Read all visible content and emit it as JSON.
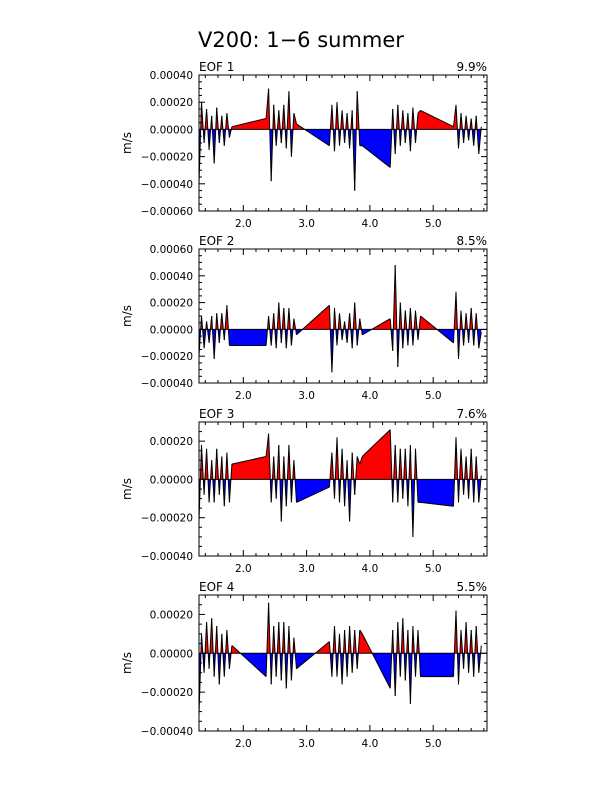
{
  "title": "V200: 1−6 summer",
  "colors": {
    "positive": "#ff0000",
    "negative": "#0000ff",
    "line": "#000000"
  },
  "chart_data": [
    {
      "type": "area",
      "label": "EOF 1",
      "variance": "9.9%",
      "ylabel": "m/s",
      "ylim": [
        -0.0006,
        0.0004
      ],
      "yticks": [
        -0.0006,
        -0.0004,
        -0.0002,
        0.0,
        0.0002,
        0.0004
      ],
      "yticklabels": [
        "−0.00060",
        "−0.00040",
        "−0.00020",
        "0.00000",
        "0.00020",
        "0.00040"
      ],
      "xlim": [
        1.3,
        5.85
      ],
      "xticks": [
        2.0,
        3.0,
        4.0,
        5.0
      ],
      "xticklabels": [
        "2.0",
        "3.0",
        "4.0",
        "5.0"
      ],
      "x": [
        1.3,
        1.34,
        1.38,
        1.42,
        1.46,
        1.5,
        1.54,
        1.58,
        1.62,
        1.66,
        1.7,
        1.74,
        1.78,
        1.82,
        2.36,
        2.4,
        2.44,
        2.48,
        2.52,
        2.56,
        2.6,
        2.64,
        2.68,
        2.72,
        2.76,
        2.8,
        2.84,
        3.36,
        3.4,
        3.44,
        3.48,
        3.52,
        3.56,
        3.6,
        3.64,
        3.68,
        3.72,
        3.76,
        3.8,
        3.84,
        3.88,
        4.32,
        4.36,
        4.4,
        4.44,
        4.48,
        4.52,
        4.56,
        4.6,
        4.64,
        4.68,
        4.72,
        4.76,
        4.8,
        5.32,
        5.36,
        5.4,
        5.44,
        5.48,
        5.52,
        5.56,
        5.6,
        5.64,
        5.68,
        5.72,
        5.76
      ],
      "values": [
        -0.0004,
        0.0002,
        -0.0001,
        0.00015,
        -0.00015,
        0.0001,
        -0.00025,
        0.00016,
        -0.0001,
        0.0001,
        -0.00012,
        0.00012,
        -6e-05,
        2e-05,
        8e-05,
        0.0003,
        -0.00038,
        0.00018,
        -0.00012,
        0.00014,
        -0.0001,
        0.00018,
        -0.00014,
        0.00028,
        -0.0002,
        0.00012,
        4e-05,
        -0.00012,
        0.00018,
        -0.00016,
        0.0002,
        -0.00012,
        0.00014,
        -0.0001,
        0.00012,
        -0.00014,
        0.00014,
        -0.00045,
        0.00028,
        -0.00012,
        -0.00012,
        -0.00028,
        0.00015,
        -0.00018,
        0.00018,
        -0.00012,
        0.00014,
        -0.0001,
        0.00012,
        -0.00016,
        0.00016,
        -0.0001,
        0.00012,
        0.00014,
        2e-05,
        0.00018,
        -0.00014,
        0.00012,
        -0.0001,
        0.0001,
        -8e-05,
        8e-05,
        -0.00012,
        0.0001,
        -0.00018,
        2e-05
      ]
    },
    {
      "type": "area",
      "label": "EOF 2",
      "variance": "8.5%",
      "ylabel": "m/s",
      "ylim": [
        -0.0004,
        0.0006
      ],
      "yticks": [
        -0.0004,
        -0.0002,
        0.0,
        0.0002,
        0.0004,
        0.0006
      ],
      "yticklabels": [
        "−0.00040",
        "−0.00020",
        "0.00000",
        "0.00020",
        "0.00040",
        "0.00060"
      ],
      "xlim": [
        1.3,
        5.85
      ],
      "xticks": [
        2.0,
        3.0,
        4.0,
        5.0
      ],
      "xticklabels": [
        "2.0",
        "3.0",
        "4.0",
        "5.0"
      ],
      "x": [
        1.3,
        1.34,
        1.38,
        1.42,
        1.46,
        1.5,
        1.54,
        1.58,
        1.62,
        1.66,
        1.7,
        1.74,
        1.78,
        1.82,
        2.36,
        2.4,
        2.44,
        2.48,
        2.52,
        2.56,
        2.6,
        2.64,
        2.68,
        2.72,
        2.76,
        2.8,
        2.84,
        3.36,
        3.4,
        3.44,
        3.48,
        3.52,
        3.56,
        3.6,
        3.64,
        3.68,
        3.72,
        3.76,
        3.8,
        3.84,
        3.88,
        4.32,
        4.36,
        4.4,
        4.44,
        4.48,
        4.52,
        4.56,
        4.6,
        4.64,
        4.68,
        4.72,
        4.76,
        4.8,
        5.32,
        5.36,
        5.4,
        5.44,
        5.48,
        5.52,
        5.56,
        5.6,
        5.64,
        5.68,
        5.72,
        5.76
      ],
      "values": [
        -0.0002,
        0.0001,
        -0.00014,
        6e-05,
        -0.0001,
        0.0001,
        -0.00022,
        0.00012,
        -0.0001,
        0.00012,
        -8e-05,
        0.00018,
        -0.00012,
        -0.00012,
        -0.00012,
        0.0001,
        -0.00012,
        0.00012,
        -0.00014,
        0.0002,
        -0.0001,
        0.00016,
        -0.00014,
        0.00016,
        -0.00012,
        8e-05,
        -4e-05,
        0.00018,
        -0.00032,
        0.00016,
        -0.00012,
        0.00012,
        -8e-05,
        6e-05,
        -0.0001,
        0.00012,
        -0.00014,
        0.0002,
        -0.00012,
        8e-05,
        -4e-05,
        8e-05,
        -0.00016,
        0.00048,
        -0.00028,
        0.0002,
        -0.00014,
        0.00014,
        -0.00012,
        0.00016,
        -0.00012,
        0.00014,
        -8e-05,
        0.0001,
        -0.0001,
        0.00028,
        -0.00022,
        0.00014,
        -0.00012,
        0.00012,
        -0.0001,
        0.00016,
        -0.00012,
        0.00012,
        -0.00014,
        -2e-05
      ]
    },
    {
      "type": "area",
      "label": "EOF 3",
      "variance": "7.6%",
      "ylabel": "m/s",
      "ylim": [
        -0.0004,
        0.0003
      ],
      "yticks": [
        -0.0004,
        -0.0002,
        0.0,
        0.0002
      ],
      "yticklabels": [
        "−0.00040",
        "−0.00020",
        "0.00000",
        "0.00020"
      ],
      "xlim": [
        1.3,
        5.85
      ],
      "xticks": [
        2.0,
        3.0,
        4.0,
        5.0
      ],
      "xticklabels": [
        "2.0",
        "3.0",
        "4.0",
        "5.0"
      ],
      "x": [
        1.3,
        1.34,
        1.38,
        1.42,
        1.46,
        1.5,
        1.54,
        1.58,
        1.62,
        1.66,
        1.7,
        1.74,
        1.78,
        1.82,
        2.36,
        2.4,
        2.44,
        2.48,
        2.52,
        2.56,
        2.6,
        2.64,
        2.68,
        2.72,
        2.76,
        2.8,
        2.84,
        3.36,
        3.4,
        3.44,
        3.48,
        3.52,
        3.56,
        3.6,
        3.64,
        3.68,
        3.72,
        3.76,
        3.8,
        3.84,
        3.88,
        4.32,
        4.36,
        4.4,
        4.44,
        4.48,
        4.52,
        4.56,
        4.6,
        4.64,
        4.68,
        4.72,
        4.76,
        4.8,
        5.32,
        5.36,
        5.4,
        5.44,
        5.48,
        5.52,
        5.56,
        5.6,
        5.64,
        5.68,
        5.72,
        5.76
      ],
      "values": [
        -0.00022,
        0.00018,
        -8e-05,
        0.00016,
        -0.00012,
        0.0001,
        -0.00012,
        0.00016,
        -8e-05,
        0.00012,
        -0.00014,
        0.00014,
        -0.00012,
        8e-05,
        0.00012,
        0.00024,
        -0.00012,
        0.00012,
        -0.0001,
        0.00018,
        -0.00022,
        0.00012,
        -0.00014,
        0.00018,
        -0.00012,
        0.0001,
        -0.00012,
        -4e-05,
        0.00014,
        -0.0001,
        0.00022,
        -0.00012,
        0.00016,
        -0.00014,
        0.0001,
        -0.00022,
        0.00014,
        -8e-05,
        0.00012,
        8e-05,
        0.00012,
        0.00026,
        -0.00012,
        0.00018,
        -0.00012,
        0.00016,
        -0.0001,
        0.00016,
        -0.00014,
        0.00018,
        -0.0003,
        0.00016,
        -0.00012,
        -0.00012,
        -0.00014,
        0.00022,
        -0.00012,
        0.00016,
        -8e-05,
        0.00012,
        -0.0001,
        0.00016,
        -0.00012,
        0.00012,
        -0.00012,
        2e-05
      ]
    },
    {
      "type": "area",
      "label": "EOF 4",
      "variance": "5.5%",
      "ylabel": "m/s",
      "ylim": [
        -0.0004,
        0.0003
      ],
      "yticks": [
        -0.0004,
        -0.0002,
        0.0,
        0.0002
      ],
      "yticklabels": [
        "−0.00040",
        "−0.00020",
        "0.00000",
        "0.00020"
      ],
      "xlim": [
        1.3,
        5.85
      ],
      "xticks": [
        2.0,
        3.0,
        4.0,
        5.0
      ],
      "xticklabels": [
        "2.0",
        "3.0",
        "4.0",
        "5.0"
      ],
      "x": [
        1.3,
        1.34,
        1.38,
        1.42,
        1.46,
        1.5,
        1.54,
        1.58,
        1.62,
        1.66,
        1.7,
        1.74,
        1.78,
        1.82,
        2.36,
        2.4,
        2.44,
        2.48,
        2.52,
        2.56,
        2.6,
        2.64,
        2.68,
        2.72,
        2.76,
        2.8,
        2.84,
        3.36,
        3.4,
        3.44,
        3.48,
        3.52,
        3.56,
        3.6,
        3.64,
        3.68,
        3.72,
        3.76,
        3.8,
        3.84,
        3.88,
        4.32,
        4.36,
        4.4,
        4.44,
        4.48,
        4.52,
        4.56,
        4.6,
        4.64,
        4.68,
        4.72,
        4.76,
        4.8,
        5.32,
        5.36,
        5.4,
        5.44,
        5.48,
        5.52,
        5.56,
        5.6,
        5.64,
        5.68,
        5.72,
        5.76
      ],
      "values": [
        -0.00032,
        0.0001,
        -0.0001,
        0.00016,
        -8e-05,
        0.00018,
        -0.00012,
        0.00014,
        -0.00016,
        0.0001,
        -0.00012,
        0.00012,
        -8e-05,
        4e-05,
        -0.00012,
        0.00026,
        -0.00016,
        0.00014,
        -0.00012,
        0.00016,
        -0.00014,
        0.00016,
        -0.00018,
        0.00014,
        -0.00014,
        8e-05,
        -8e-05,
        6e-05,
        -0.00012,
        0.00014,
        -0.00012,
        0.0001,
        -0.00016,
        0.00012,
        -0.00012,
        0.00014,
        -0.0001,
        0.00012,
        -8e-05,
        0.00012,
        0.0001,
        -0.00018,
        0.00012,
        -0.00022,
        0.00016,
        -0.00012,
        0.00018,
        -0.00014,
        0.00012,
        -0.00026,
        0.00014,
        -0.00012,
        0.00012,
        -0.00012,
        -0.00012,
        0.00022,
        -0.00016,
        0.00012,
        -8e-05,
        0.00016,
        -0.0001,
        0.00012,
        -0.00012,
        0.00014,
        -0.0001,
        4e-05
      ]
    }
  ]
}
